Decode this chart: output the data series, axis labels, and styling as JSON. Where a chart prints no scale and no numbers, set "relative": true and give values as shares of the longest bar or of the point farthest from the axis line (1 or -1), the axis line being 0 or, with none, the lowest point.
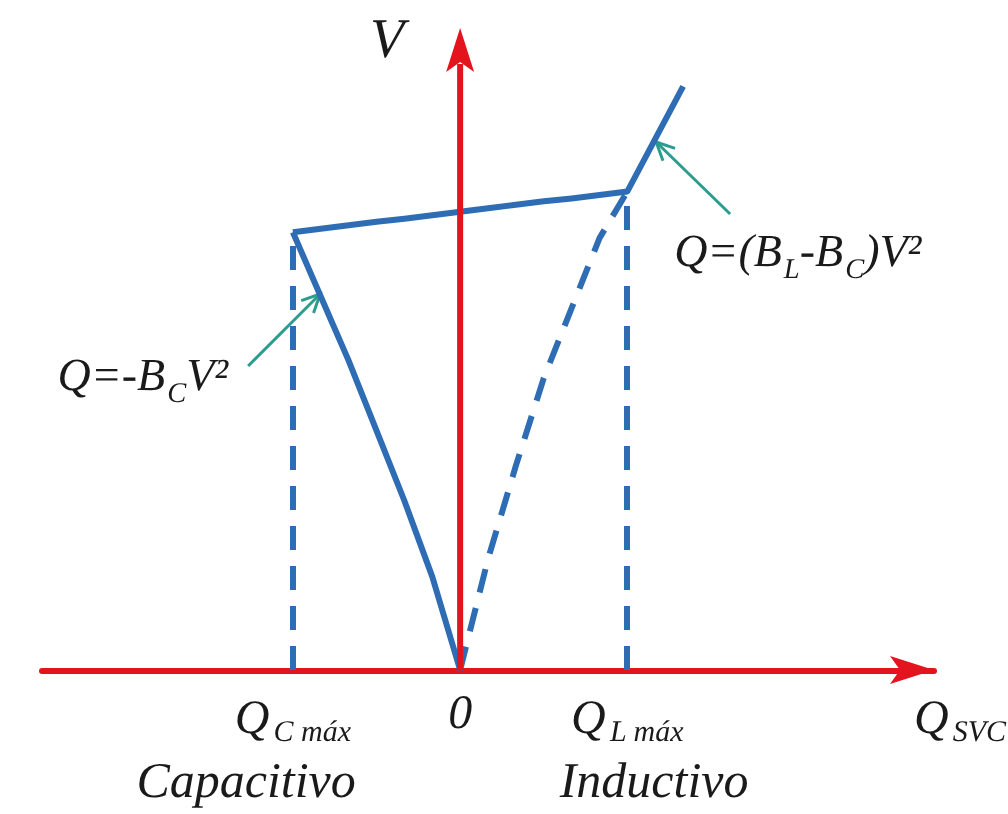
{
  "chart_data": {
    "type": "line",
    "relative": true,
    "xlabel": "Q$_{SVC}$",
    "ylabel": "V",
    "categories": [
      null,
      null,
      null,
      null,
      null,
      null,
      null,
      null,
      null,
      "Q$_{C máx}$",
      null,
      null,
      null,
      null,
      null,
      "0",
      null,
      null,
      null,
      null,
      null,
      "Q$_{L máx}$",
      null,
      null,
      null,
      null,
      null,
      null,
      null,
      null,
      null,
      null,
      null
    ],
    "tick_labels": "x",
    "grid": false,
    "marker": "none",
    "series": [
      {
        "color": "#2e6db4",
        "line_style": "solid",
        "values": [
          null,
          null,
          null,
          null,
          null,
          null,
          null,
          null,
          null,
          0.75,
          0.64,
          0.53,
          0.41,
          0.29,
          0.16,
          0,
          null,
          null,
          null,
          null,
          null,
          null,
          null,
          null,
          null,
          null,
          null,
          null,
          null,
          null,
          null,
          null,
          null
        ]
      },
      {
        "color": "#2e6db4",
        "line_style": "solid",
        "values": [
          null,
          null,
          null,
          null,
          null,
          null,
          null,
          null,
          null,
          0.75,
          0.756,
          0.762,
          0.768,
          0.773,
          0.779,
          0.785,
          0.791,
          0.797,
          0.803,
          0.808,
          0.814,
          0.82,
          0.91,
          1,
          null,
          null,
          null,
          null,
          null,
          null,
          null,
          null,
          null
        ]
      },
      {
        "color": "#2e6db4",
        "line_style": "dashed",
        "values": [
          null,
          null,
          null,
          null,
          null,
          null,
          null,
          null,
          null,
          null,
          null,
          null,
          null,
          null,
          null,
          0,
          0.19,
          0.35,
          0.5,
          0.62,
          0.74,
          0.82,
          null,
          null,
          null,
          null,
          null,
          null,
          null,
          null,
          null,
          null,
          null
        ]
      }
    ],
    "ref_lines": [
      {
        "axis": "x",
        "value": "Q$_{C máx}$",
        "color": "#2e6db4",
        "line_style": "dashed"
      },
      {
        "axis": "x",
        "value": "Q$_{L máx}$",
        "color": "#2e6db4",
        "line_style": "dashed"
      }
    ],
    "annotations": [
      "Q=-B$_{C}$V²",
      "Q=(B$_{L}$-B$_{C}$)V²",
      "Capacitivo",
      "Inductivo"
    ]
  }
}
